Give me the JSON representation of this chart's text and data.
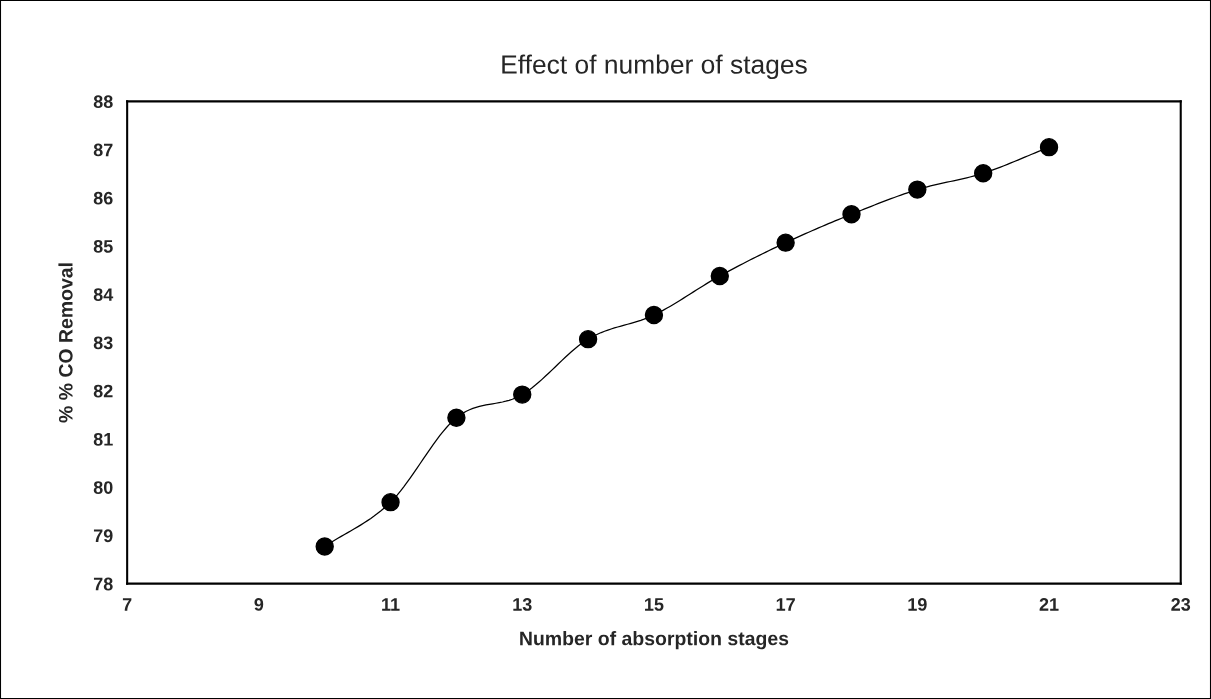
{
  "chart_data": {
    "type": "line",
    "title": "Effect of number of stages",
    "xlabel": "Number of absorption stages",
    "ylabel": "% % CO Removal",
    "x": [
      10,
      11,
      12,
      13,
      14,
      15,
      16,
      17,
      18,
      19,
      20,
      21
    ],
    "series": [
      {
        "color": "#000000",
        "values": [
          78.77,
          79.69,
          81.44,
          81.92,
          83.07,
          83.57,
          84.38,
          85.07,
          85.66,
          86.17,
          86.51,
          87.05
        ]
      }
    ],
    "marker": "circle",
    "line_style": "solid",
    "xlim": [
      7,
      23
    ],
    "xticks": [
      7,
      9,
      11,
      13,
      15,
      17,
      19,
      21,
      23
    ],
    "ylim": [
      78,
      88
    ],
    "yticks": [
      78,
      79,
      80,
      81,
      82,
      83,
      84,
      85,
      86,
      87,
      88
    ],
    "grid": false,
    "legend": false
  }
}
